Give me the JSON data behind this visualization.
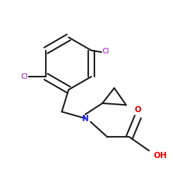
{
  "background_color": "#ffffff",
  "bond_color": "#1a1a1a",
  "N_color": "#2222ff",
  "Cl_color": "#9900bb",
  "O_color": "#ee0000",
  "line_width": 1.6,
  "fig_width": 2.5,
  "fig_height": 2.5,
  "dpi": 100,
  "xlim": [
    0.0,
    1.0
  ],
  "ylim": [
    0.05,
    1.05
  ]
}
